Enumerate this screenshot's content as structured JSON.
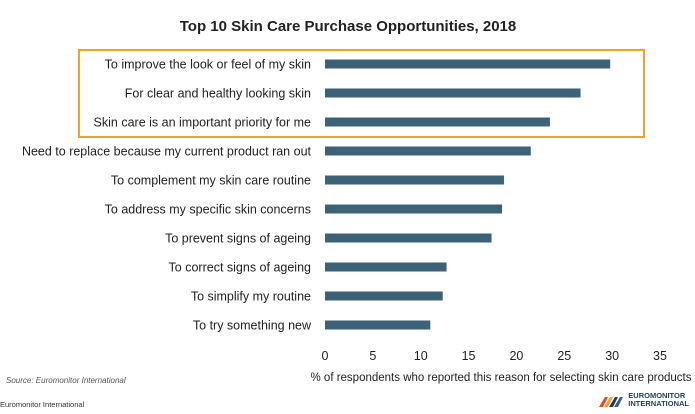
{
  "chart_data": {
    "type": "bar",
    "orientation": "horizontal",
    "title": "Top 10 Skin Care Purchase Opportunities, 2018",
    "xlabel": "% of respondents who reported this reason for selecting skin care products",
    "ylabel": "",
    "categories": [
      "To improve the look or feel of my skin",
      "For clear and healthy looking skin",
      "Skin care is an important priority for me",
      "Need to replace because my current product ran out",
      "To complement my skin care routine",
      "To address my specific skin concerns",
      "To prevent signs of ageing",
      "To correct signs of ageing",
      "To simplify my routine",
      "To try something new"
    ],
    "values": [
      29.8,
      26.7,
      23.5,
      21.5,
      18.7,
      18.5,
      17.4,
      12.7,
      12.3,
      11.0
    ],
    "xlim": [
      0,
      35
    ],
    "xticks": [
      0,
      5,
      10,
      15,
      20,
      25,
      30,
      35
    ],
    "bar_color": "#3b6277",
    "highlight": {
      "first_n_categories": 3,
      "border_color": "#f0a22e"
    },
    "grid": false
  },
  "source": "Source: Euromonitor International",
  "footer": "Euromonitor International",
  "logo": {
    "line1": "EUROMONITOR",
    "line2": "INTERNATIONAL"
  }
}
